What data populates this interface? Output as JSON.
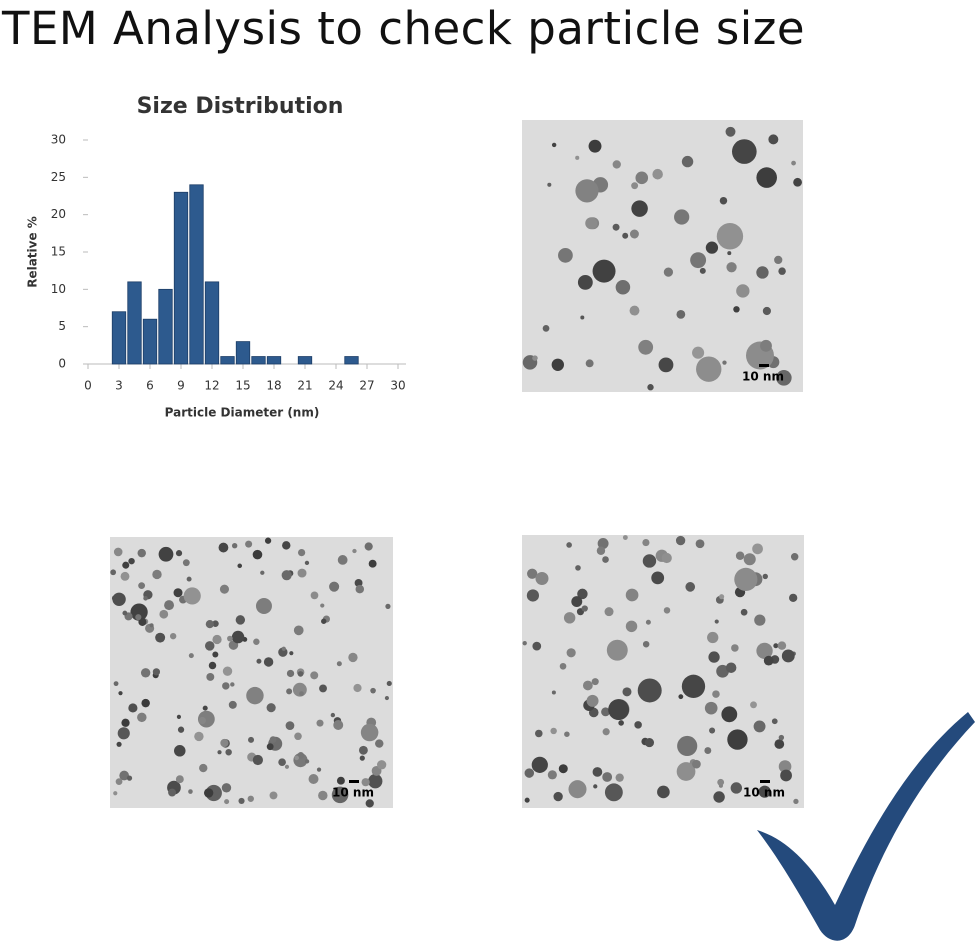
{
  "header": {
    "title": "TEM Analysis to check particle size"
  },
  "chart_data": {
    "type": "histogram",
    "title": "Size Distribution",
    "x_label": "Particle Diameter (nm)",
    "y_label": "Relative %",
    "bins": [
      2.25,
      3.75,
      5.25,
      6.75,
      8.25,
      9.75,
      11.25,
      12.75,
      14.25,
      15.75,
      17.25,
      18.75,
      20.25,
      21.75,
      23.25,
      24.75,
      26.25
    ],
    "values": [
      7,
      11,
      6,
      10,
      23,
      24,
      11,
      1,
      3,
      1,
      1,
      0,
      1,
      0,
      0,
      1
    ],
    "color": "#2d5a8e",
    "xlim": [
      0,
      30
    ],
    "xticks": [
      0,
      3,
      6,
      9,
      12,
      15,
      18,
      21,
      24,
      27,
      30
    ],
    "ylim": [
      0,
      30
    ],
    "yticks": [
      0,
      5,
      10,
      15,
      20,
      25,
      30
    ]
  },
  "images": [
    {
      "scale_label": "10 nm"
    },
    {
      "scale_label": "10 nm"
    },
    {
      "scale_label": "10 nm"
    }
  ]
}
